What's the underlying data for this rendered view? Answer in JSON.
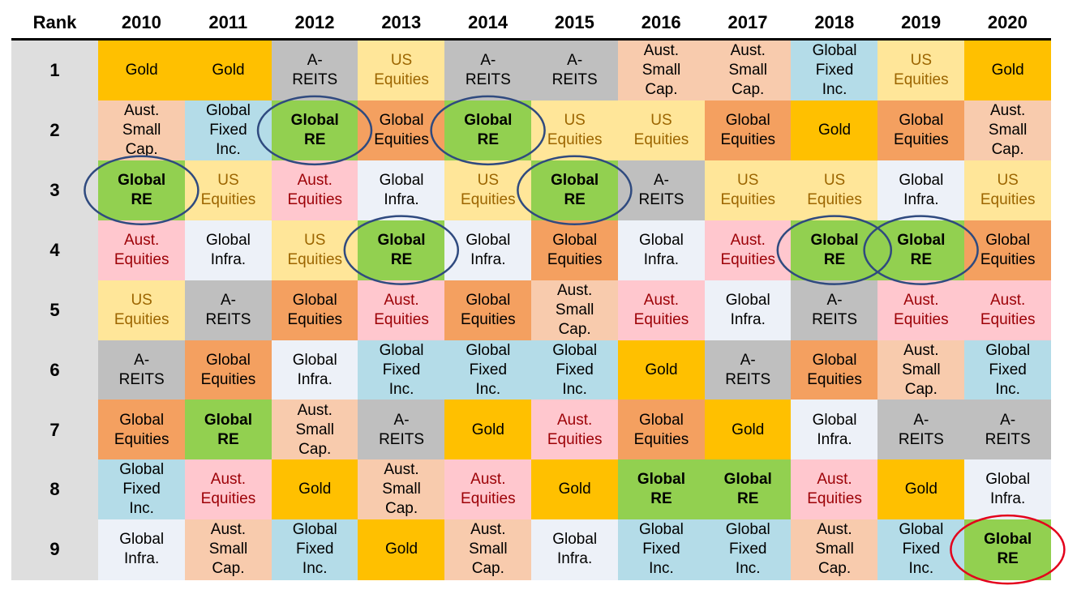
{
  "chart_data": {
    "type": "table",
    "header": {
      "rank_label": "Rank",
      "years": [
        "2010",
        "2011",
        "2012",
        "2013",
        "2014",
        "2015",
        "2016",
        "2017",
        "2018",
        "2019",
        "2020"
      ]
    },
    "ranks": [
      "1",
      "2",
      "3",
      "4",
      "5",
      "6",
      "7",
      "8",
      "9"
    ],
    "rows": [
      [
        "Gold",
        "Gold",
        "A-\nREITS",
        "US\nEquities",
        "A-\nREITS",
        "A-\nREITS",
        "Aust.\nSmall\nCap.",
        "Aust.\nSmall\nCap.",
        "Global\nFixed\nInc.",
        "US\nEquities",
        "Gold"
      ],
      [
        "Aust.\nSmall\nCap.",
        "Global\nFixed\nInc.",
        "Global\nRE",
        "Global\nEquities",
        "Global\nRE",
        "US\nEquities",
        "US\nEquities",
        "Global\nEquities",
        "Gold",
        "Global\nEquities",
        "Aust.\nSmall\nCap."
      ],
      [
        "Global\nRE",
        "US\nEquities",
        "Aust.\nEquities",
        "Global\nInfra.",
        "US\nEquities",
        "Global\nRE",
        "A-\nREITS",
        "US\nEquities",
        "US\nEquities",
        "Global\nInfra.",
        "US\nEquities"
      ],
      [
        "Aust.\nEquities",
        "Global\nInfra.",
        "US\nEquities",
        "Global\nRE",
        "Global\nInfra.",
        "Global\nEquities",
        "Global\nInfra.",
        "Aust.\nEquities",
        "Global\nRE",
        "Global\nRE",
        "Global\nEquities"
      ],
      [
        "US\nEquities",
        "A-\nREITS",
        "Global\nEquities",
        "Aust.\nEquities",
        "Global\nEquities",
        "Aust.\nSmall\nCap.",
        "Aust.\nEquities",
        "Global\nInfra.",
        "A-\nREITS",
        "Aust.\nEquities",
        "Aust.\nEquities"
      ],
      [
        "A-\nREITS",
        "Global\nEquities",
        "Global\nInfra.",
        "Global\nFixed\nInc.",
        "Global\nFixed\nInc.",
        "Global\nFixed\nInc.",
        "Gold",
        "A-\nREITS",
        "Global\nEquities",
        "Aust.\nSmall\nCap.",
        "Global\nFixed\nInc."
      ],
      [
        "Global\nEquities",
        "Global\nRE",
        "Aust.\nSmall\nCap.",
        "A-\nREITS",
        "Gold",
        "Aust.\nEquities",
        "Global\nEquities",
        "Gold",
        "Global\nInfra.",
        "A-\nREITS",
        "A-\nREITS"
      ],
      [
        "Global\nFixed\nInc.",
        "Aust.\nEquities",
        "Gold",
        "Aust.\nSmall\nCap.",
        "Aust.\nEquities",
        "Gold",
        "Global\nRE",
        "Global\nRE",
        "Aust.\nEquities",
        "Gold",
        "Global\nInfra."
      ],
      [
        "Global\nInfra.",
        "Aust.\nSmall\nCap.",
        "Global\nFixed\nInc.",
        "Gold",
        "Aust.\nSmall\nCap.",
        "Global\nInfra.",
        "Global\nFixed\nInc.",
        "Global\nFixed\nInc.",
        "Aust.\nSmall\nCap.",
        "Global\nFixed\nInc.",
        "Global\nRE"
      ]
    ],
    "asset_styles": {
      "Gold": {
        "bg": "#ffc000",
        "fg": "#000000",
        "bold": false
      },
      "A-\nREITS": {
        "bg": "#bfbfbf",
        "fg": "#000000",
        "bold": false
      },
      "US\nEquities": {
        "bg": "#ffe699",
        "fg": "#9c6500",
        "bold": false
      },
      "Aust.\nSmall\nCap.": {
        "bg": "#f8cbad",
        "fg": "#000000",
        "bold": false
      },
      "Global\nFixed\nInc.": {
        "bg": "#b4dce8",
        "fg": "#000000",
        "bold": false
      },
      "Global\nRE": {
        "bg": "#92d050",
        "fg": "#000000",
        "bold": true
      },
      "Global\nEquities": {
        "bg": "#f4a060",
        "fg": "#000000",
        "bold": false
      },
      "Global\nInfra.": {
        "bg": "#edf1f8",
        "fg": "#000000",
        "bold": false
      },
      "Aust.\nEquities": {
        "bg": "#ffc7ce",
        "fg": "#9c0006",
        "bold": false
      }
    },
    "highlighted_cells": [
      {
        "year": "2010",
        "rank": 3,
        "color": "#2f4a7f"
      },
      {
        "year": "2012",
        "rank": 2,
        "color": "#2f4a7f"
      },
      {
        "year": "2013",
        "rank": 4,
        "color": "#2f4a7f"
      },
      {
        "year": "2014",
        "rank": 2,
        "color": "#2f4a7f"
      },
      {
        "year": "2015",
        "rank": 3,
        "color": "#2f4a7f"
      },
      {
        "year": "2018",
        "rank": 4,
        "color": "#2f4a7f"
      },
      {
        "year": "2019",
        "rank": 4,
        "color": "#2f4a7f"
      },
      {
        "year": "2020",
        "rank": 9,
        "color": "#e3001b"
      }
    ]
  }
}
